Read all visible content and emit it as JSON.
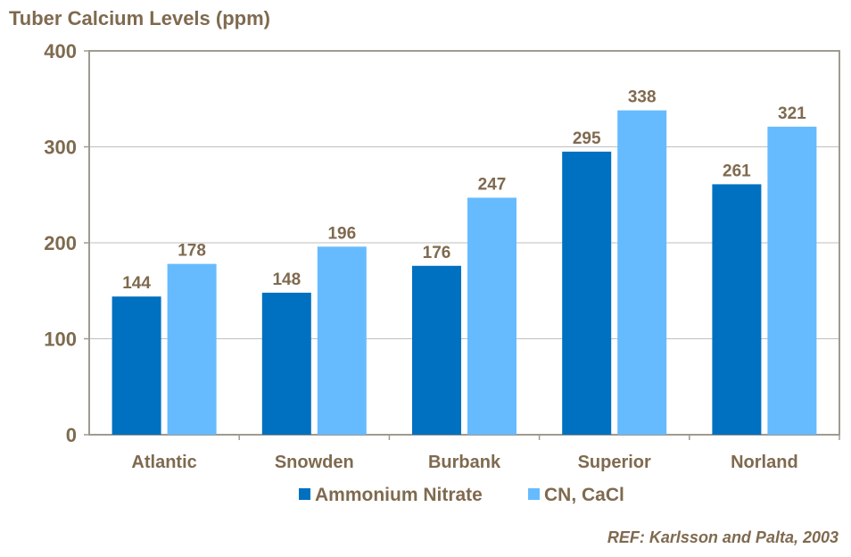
{
  "chart_data": {
    "type": "bar",
    "title": "Tuber Calcium Levels (ppm)",
    "categories": [
      "Atlantic",
      "Snowden",
      "Burbank",
      "Superior",
      "Norland"
    ],
    "series": [
      {
        "name": "Ammonium Nitrate",
        "values": [
          144,
          148,
          176,
          295,
          261
        ],
        "color": "#0070c0"
      },
      {
        "name": "CN, CaCl",
        "values": [
          178,
          196,
          247,
          338,
          321
        ],
        "color": "#66bbff"
      }
    ],
    "ylim": [
      0,
      400
    ],
    "yticks": [
      0,
      100,
      200,
      300,
      400
    ],
    "grid": true,
    "legend": "bottom",
    "xlabel": "",
    "ylabel": ""
  },
  "footnote": "REF: Karlsson and Palta, 2003"
}
